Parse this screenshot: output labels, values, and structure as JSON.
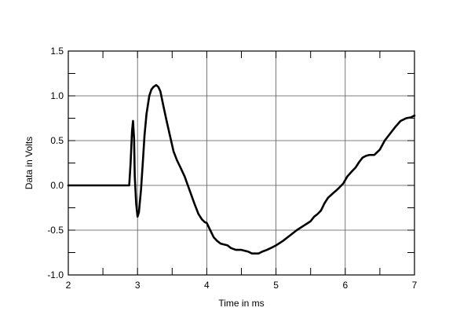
{
  "chart_data": {
    "type": "line",
    "title": "",
    "xlabel": "Time in ms",
    "ylabel": "Data in Volts",
    "xlim": [
      2,
      7
    ],
    "ylim": [
      -1.0,
      1.5
    ],
    "x_ticks": [
      2,
      3,
      4,
      5,
      6,
      7
    ],
    "x_tick_labels": [
      "2",
      "3",
      "4",
      "5",
      "6",
      "7"
    ],
    "y_ticks": [
      -1.0,
      -0.5,
      0.0,
      0.5,
      1.0,
      1.5
    ],
    "y_tick_labels": [
      "-1.0",
      "-0.5",
      "0.0",
      "0.5",
      "1.0",
      "1.5"
    ],
    "grid": true,
    "minor_ticks": {
      "x": 0.5,
      "y": 0.25
    },
    "line_color": "#000000",
    "series": [
      {
        "x": [
          2.0,
          2.5,
          2.88,
          2.9,
          2.92,
          2.935,
          2.95,
          2.96,
          2.98,
          3.0,
          3.02,
          3.05,
          3.08,
          3.1,
          3.13,
          3.17,
          3.2,
          3.23,
          3.27,
          3.3,
          3.33,
          3.37,
          3.42,
          3.47,
          3.52,
          3.57,
          3.62,
          3.68,
          3.75,
          3.82,
          3.88,
          3.93,
          3.97,
          4.0,
          4.05,
          4.1,
          4.15,
          4.2,
          4.3,
          4.35,
          4.42,
          4.5,
          4.55,
          4.6,
          4.65,
          4.7,
          4.75,
          4.8,
          4.87,
          4.95,
          5.0,
          5.1,
          5.2,
          5.3,
          5.4,
          5.5,
          5.55,
          5.6,
          5.65,
          5.7,
          5.75,
          5.82,
          5.88,
          5.92,
          5.97,
          6.03,
          6.1,
          6.15,
          6.2,
          6.25,
          6.3,
          6.35,
          6.42,
          6.5,
          6.57,
          6.65,
          6.72,
          6.8,
          6.88,
          6.95,
          7.0
        ],
        "y": [
          0.0,
          0.0,
          0.0,
          0.25,
          0.6,
          0.72,
          0.52,
          0.1,
          -0.2,
          -0.35,
          -0.3,
          -0.05,
          0.3,
          0.55,
          0.8,
          1.0,
          1.07,
          1.1,
          1.12,
          1.1,
          1.05,
          0.9,
          0.72,
          0.55,
          0.38,
          0.28,
          0.2,
          0.1,
          -0.05,
          -0.2,
          -0.32,
          -0.38,
          -0.41,
          -0.42,
          -0.5,
          -0.58,
          -0.62,
          -0.65,
          -0.67,
          -0.7,
          -0.72,
          -0.72,
          -0.73,
          -0.74,
          -0.76,
          -0.76,
          -0.76,
          -0.74,
          -0.72,
          -0.69,
          -0.67,
          -0.62,
          -0.56,
          -0.5,
          -0.45,
          -0.4,
          -0.35,
          -0.32,
          -0.28,
          -0.2,
          -0.14,
          -0.09,
          -0.05,
          -0.02,
          0.02,
          0.1,
          0.16,
          0.2,
          0.26,
          0.31,
          0.33,
          0.34,
          0.34,
          0.4,
          0.5,
          0.58,
          0.65,
          0.72,
          0.75,
          0.76,
          0.78
        ]
      }
    ]
  }
}
